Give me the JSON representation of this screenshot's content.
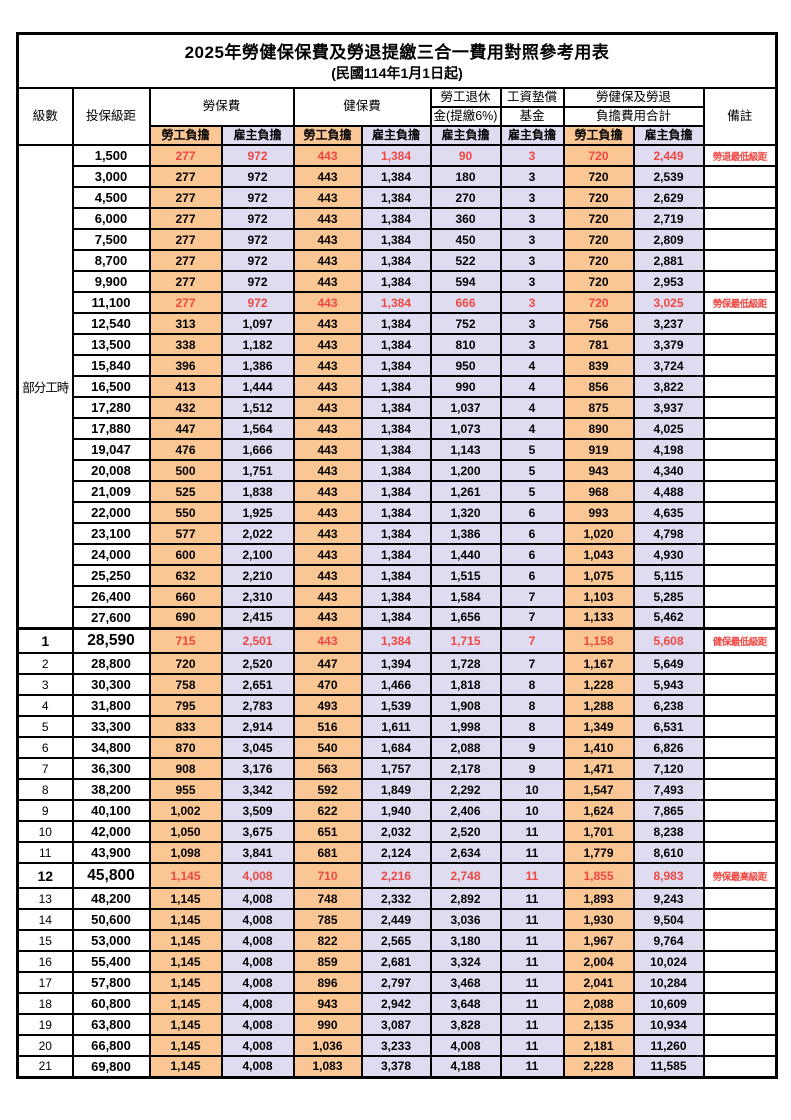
{
  "title": {
    "main": "2025年勞健保保費及勞退提繳三合一費用對照參考用表",
    "effective_date": "(民國114年1月1日起)"
  },
  "header": {
    "level": "級數",
    "bracket": "投保級距",
    "labor_fee": "勞保費",
    "health_fee": "健保費",
    "pension_line1": "勞工退休",
    "pension_line2": "金(提繳6%)",
    "fund_line1": "工資墊償",
    "fund_line2": "基金",
    "total_line1": "勞健保及勞退",
    "total_line2": "負擔費用合計",
    "remark": "備註",
    "employee": "勞工負擔",
    "employer": "雇主負擔"
  },
  "part_time_label": "部分工時",
  "part_time_rowspan": 23,
  "colors": {
    "employee_bg": "#fac693",
    "employer_bg": "#dfdcf1",
    "highlight_text": "#ef4843",
    "border": "#000000"
  },
  "rows": [
    {
      "level": "",
      "bracket": "1,500",
      "values": [
        "277",
        "972",
        "443",
        "1,384",
        "90",
        "3",
        "720",
        "2,449"
      ],
      "remark": "勞退最低級距",
      "highlight": true,
      "big": false
    },
    {
      "level": "",
      "bracket": "3,000",
      "values": [
        "277",
        "972",
        "443",
        "1,384",
        "180",
        "3",
        "720",
        "2,539"
      ],
      "remark": "",
      "highlight": false,
      "big": false
    },
    {
      "level": "",
      "bracket": "4,500",
      "values": [
        "277",
        "972",
        "443",
        "1,384",
        "270",
        "3",
        "720",
        "2,629"
      ],
      "remark": "",
      "highlight": false,
      "big": false
    },
    {
      "level": "",
      "bracket": "6,000",
      "values": [
        "277",
        "972",
        "443",
        "1,384",
        "360",
        "3",
        "720",
        "2,719"
      ],
      "remark": "",
      "highlight": false,
      "big": false
    },
    {
      "level": "",
      "bracket": "7,500",
      "values": [
        "277",
        "972",
        "443",
        "1,384",
        "450",
        "3",
        "720",
        "2,809"
      ],
      "remark": "",
      "highlight": false,
      "big": false
    },
    {
      "level": "",
      "bracket": "8,700",
      "values": [
        "277",
        "972",
        "443",
        "1,384",
        "522",
        "3",
        "720",
        "2,881"
      ],
      "remark": "",
      "highlight": false,
      "big": false
    },
    {
      "level": "",
      "bracket": "9,900",
      "values": [
        "277",
        "972",
        "443",
        "1,384",
        "594",
        "3",
        "720",
        "2,953"
      ],
      "remark": "",
      "highlight": false,
      "big": false
    },
    {
      "level": "",
      "bracket": "11,100",
      "values": [
        "277",
        "972",
        "443",
        "1,384",
        "666",
        "3",
        "720",
        "3,025"
      ],
      "remark": "勞保最低級距",
      "highlight": true,
      "big": false
    },
    {
      "level": "",
      "bracket": "12,540",
      "values": [
        "313",
        "1,097",
        "443",
        "1,384",
        "752",
        "3",
        "756",
        "3,237"
      ],
      "remark": "",
      "highlight": false,
      "big": false
    },
    {
      "level": "",
      "bracket": "13,500",
      "values": [
        "338",
        "1,182",
        "443",
        "1,384",
        "810",
        "3",
        "781",
        "3,379"
      ],
      "remark": "",
      "highlight": false,
      "big": false
    },
    {
      "level": "",
      "bracket": "15,840",
      "values": [
        "396",
        "1,386",
        "443",
        "1,384",
        "950",
        "4",
        "839",
        "3,724"
      ],
      "remark": "",
      "highlight": false,
      "big": false
    },
    {
      "level": "",
      "bracket": "16,500",
      "values": [
        "413",
        "1,444",
        "443",
        "1,384",
        "990",
        "4",
        "856",
        "3,822"
      ],
      "remark": "",
      "highlight": false,
      "big": false
    },
    {
      "level": "",
      "bracket": "17,280",
      "values": [
        "432",
        "1,512",
        "443",
        "1,384",
        "1,037",
        "4",
        "875",
        "3,937"
      ],
      "remark": "",
      "highlight": false,
      "big": false
    },
    {
      "level": "",
      "bracket": "17,880",
      "values": [
        "447",
        "1,564",
        "443",
        "1,384",
        "1,073",
        "4",
        "890",
        "4,025"
      ],
      "remark": "",
      "highlight": false,
      "big": false
    },
    {
      "level": "",
      "bracket": "19,047",
      "values": [
        "476",
        "1,666",
        "443",
        "1,384",
        "1,143",
        "5",
        "919",
        "4,198"
      ],
      "remark": "",
      "highlight": false,
      "big": false
    },
    {
      "level": "",
      "bracket": "20,008",
      "values": [
        "500",
        "1,751",
        "443",
        "1,384",
        "1,200",
        "5",
        "943",
        "4,340"
      ],
      "remark": "",
      "highlight": false,
      "big": false
    },
    {
      "level": "",
      "bracket": "21,009",
      "values": [
        "525",
        "1,838",
        "443",
        "1,384",
        "1,261",
        "5",
        "968",
        "4,488"
      ],
      "remark": "",
      "highlight": false,
      "big": false
    },
    {
      "level": "",
      "bracket": "22,000",
      "values": [
        "550",
        "1,925",
        "443",
        "1,384",
        "1,320",
        "6",
        "993",
        "4,635"
      ],
      "remark": "",
      "highlight": false,
      "big": false
    },
    {
      "level": "",
      "bracket": "23,100",
      "values": [
        "577",
        "2,022",
        "443",
        "1,384",
        "1,386",
        "6",
        "1,020",
        "4,798"
      ],
      "remark": "",
      "highlight": false,
      "big": false
    },
    {
      "level": "",
      "bracket": "24,000",
      "values": [
        "600",
        "2,100",
        "443",
        "1,384",
        "1,440",
        "6",
        "1,043",
        "4,930"
      ],
      "remark": "",
      "highlight": false,
      "big": false
    },
    {
      "level": "",
      "bracket": "25,250",
      "values": [
        "632",
        "2,210",
        "443",
        "1,384",
        "1,515",
        "6",
        "1,075",
        "5,115"
      ],
      "remark": "",
      "highlight": false,
      "big": false
    },
    {
      "level": "",
      "bracket": "26,400",
      "values": [
        "660",
        "2,310",
        "443",
        "1,384",
        "1,584",
        "7",
        "1,103",
        "5,285"
      ],
      "remark": "",
      "highlight": false,
      "big": false
    },
    {
      "level": "",
      "bracket": "27,600",
      "values": [
        "690",
        "2,415",
        "443",
        "1,384",
        "1,656",
        "7",
        "1,133",
        "5,462"
      ],
      "remark": "",
      "highlight": false,
      "big": false
    },
    {
      "level": "1",
      "bracket": "28,590",
      "values": [
        "715",
        "2,501",
        "443",
        "1,384",
        "1,715",
        "7",
        "1,158",
        "5,608"
      ],
      "remark": "健保最低級距",
      "highlight": true,
      "big": true
    },
    {
      "level": "2",
      "bracket": "28,800",
      "values": [
        "720",
        "2,520",
        "447",
        "1,394",
        "1,728",
        "7",
        "1,167",
        "5,649"
      ],
      "remark": "",
      "highlight": false,
      "big": false
    },
    {
      "level": "3",
      "bracket": "30,300",
      "values": [
        "758",
        "2,651",
        "470",
        "1,466",
        "1,818",
        "8",
        "1,228",
        "5,943"
      ],
      "remark": "",
      "highlight": false,
      "big": false
    },
    {
      "level": "4",
      "bracket": "31,800",
      "values": [
        "795",
        "2,783",
        "493",
        "1,539",
        "1,908",
        "8",
        "1,288",
        "6,238"
      ],
      "remark": "",
      "highlight": false,
      "big": false
    },
    {
      "level": "5",
      "bracket": "33,300",
      "values": [
        "833",
        "2,914",
        "516",
        "1,611",
        "1,998",
        "8",
        "1,349",
        "6,531"
      ],
      "remark": "",
      "highlight": false,
      "big": false
    },
    {
      "level": "6",
      "bracket": "34,800",
      "values": [
        "870",
        "3,045",
        "540",
        "1,684",
        "2,088",
        "9",
        "1,410",
        "6,826"
      ],
      "remark": "",
      "highlight": false,
      "big": false
    },
    {
      "level": "7",
      "bracket": "36,300",
      "values": [
        "908",
        "3,176",
        "563",
        "1,757",
        "2,178",
        "9",
        "1,471",
        "7,120"
      ],
      "remark": "",
      "highlight": false,
      "big": false
    },
    {
      "level": "8",
      "bracket": "38,200",
      "values": [
        "955",
        "3,342",
        "592",
        "1,849",
        "2,292",
        "10",
        "1,547",
        "7,493"
      ],
      "remark": "",
      "highlight": false,
      "big": false
    },
    {
      "level": "9",
      "bracket": "40,100",
      "values": [
        "1,002",
        "3,509",
        "622",
        "1,940",
        "2,406",
        "10",
        "1,624",
        "7,865"
      ],
      "remark": "",
      "highlight": false,
      "big": false
    },
    {
      "level": "10",
      "bracket": "42,000",
      "values": [
        "1,050",
        "3,675",
        "651",
        "2,032",
        "2,520",
        "11",
        "1,701",
        "8,238"
      ],
      "remark": "",
      "highlight": false,
      "big": false
    },
    {
      "level": "11",
      "bracket": "43,900",
      "values": [
        "1,098",
        "3,841",
        "681",
        "2,124",
        "2,634",
        "11",
        "1,779",
        "8,610"
      ],
      "remark": "",
      "highlight": false,
      "big": false
    },
    {
      "level": "12",
      "bracket": "45,800",
      "values": [
        "1,145",
        "4,008",
        "710",
        "2,216",
        "2,748",
        "11",
        "1,855",
        "8,983"
      ],
      "remark": "勞保最高級距",
      "highlight": true,
      "big": true
    },
    {
      "level": "13",
      "bracket": "48,200",
      "values": [
        "1,145",
        "4,008",
        "748",
        "2,332",
        "2,892",
        "11",
        "1,893",
        "9,243"
      ],
      "remark": "",
      "highlight": false,
      "big": false
    },
    {
      "level": "14",
      "bracket": "50,600",
      "values": [
        "1,145",
        "4,008",
        "785",
        "2,449",
        "3,036",
        "11",
        "1,930",
        "9,504"
      ],
      "remark": "",
      "highlight": false,
      "big": false
    },
    {
      "level": "15",
      "bracket": "53,000",
      "values": [
        "1,145",
        "4,008",
        "822",
        "2,565",
        "3,180",
        "11",
        "1,967",
        "9,764"
      ],
      "remark": "",
      "highlight": false,
      "big": false
    },
    {
      "level": "16",
      "bracket": "55,400",
      "values": [
        "1,145",
        "4,008",
        "859",
        "2,681",
        "3,324",
        "11",
        "2,004",
        "10,024"
      ],
      "remark": "",
      "highlight": false,
      "big": false
    },
    {
      "level": "17",
      "bracket": "57,800",
      "values": [
        "1,145",
        "4,008",
        "896",
        "2,797",
        "3,468",
        "11",
        "2,041",
        "10,284"
      ],
      "remark": "",
      "highlight": false,
      "big": false
    },
    {
      "level": "18",
      "bracket": "60,800",
      "values": [
        "1,145",
        "4,008",
        "943",
        "2,942",
        "3,648",
        "11",
        "2,088",
        "10,609"
      ],
      "remark": "",
      "highlight": false,
      "big": false
    },
    {
      "level": "19",
      "bracket": "63,800",
      "values": [
        "1,145",
        "4,008",
        "990",
        "3,087",
        "3,828",
        "11",
        "2,135",
        "10,934"
      ],
      "remark": "",
      "highlight": false,
      "big": false
    },
    {
      "level": "20",
      "bracket": "66,800",
      "values": [
        "1,145",
        "4,008",
        "1,036",
        "3,233",
        "4,008",
        "11",
        "2,181",
        "11,260"
      ],
      "remark": "",
      "highlight": false,
      "big": false
    },
    {
      "level": "21",
      "bracket": "69,800",
      "values": [
        "1,145",
        "4,008",
        "1,083",
        "3,378",
        "4,188",
        "11",
        "2,228",
        "11,585"
      ],
      "remark": "",
      "highlight": false,
      "big": false
    }
  ]
}
